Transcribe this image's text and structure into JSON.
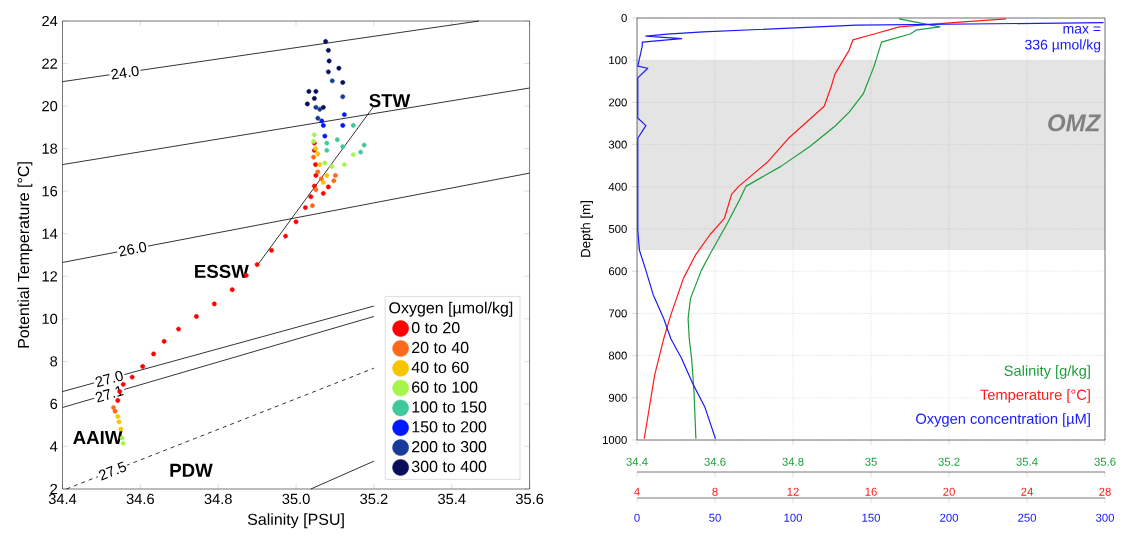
{
  "chart_data": [
    {
      "type": "scatter",
      "xlabel": "Salinity [PSU]",
      "ylabel": "Potential Temperature [°C]",
      "legend_title": "Oxygen [µmol/kg]",
      "legend": "bottom right",
      "marker": "circle",
      "xlim": [
        34.4,
        35.6
      ],
      "ylim": [
        2,
        24
      ],
      "xticks": [
        34.4,
        34.6,
        34.8,
        {
          "value": 35,
          "label": "35.0"
        },
        35.2,
        35.4,
        35.6
      ],
      "yticks": [
        2,
        4,
        6,
        8,
        10,
        12,
        14,
        16,
        18,
        20,
        22,
        24
      ],
      "series": [
        {
          "name": "0 to 20",
          "color": "#ff0000",
          "x": [
            34.542,
            34.547,
            34.556,
            34.579,
            34.606,
            34.634,
            34.661,
            34.698,
            34.744,
            34.79,
            34.836,
            34.872,
            34.9,
            34.937,
            34.973,
            35.0,
            35.024,
            35.038,
            35.047,
            35.051,
            35.05,
            35.047,
            35.047,
            35.07,
            35.083
          ],
          "values": [
            6.16,
            6.58,
            6.92,
            7.26,
            7.76,
            8.35,
            8.94,
            9.52,
            10.11,
            10.7,
            11.37,
            12.04,
            12.55,
            13.22,
            13.89,
            14.56,
            15.23,
            15.74,
            16.24,
            16.74,
            17.25,
            17.92,
            18.26,
            15.9,
            16.2
          ]
        },
        {
          "name": "20 to 40",
          "color": "#ff6a1a",
          "x": [
            34.535,
            34.531,
            35.056,
            35.065,
            35.097,
            35.101,
            35.042,
            35.051,
            35.045
          ],
          "values": [
            5.66,
            5.83,
            16.91,
            16.58,
            16.49,
            16.74,
            15.32,
            16.07,
            17.6
          ]
        },
        {
          "name": "40 to 60",
          "color": "#f7c400",
          "x": [
            34.55,
            34.545,
            34.542,
            35.056,
            35.061,
            35.07,
            35.079,
            35.05
          ],
          "values": [
            4.82,
            5.16,
            5.41,
            17.75,
            17.25,
            16.41,
            16.74,
            18.0
          ]
        },
        {
          "name": "60 to 100",
          "color": "#a6f54a",
          "x": [
            34.556,
            34.553,
            35.047,
            35.045,
            35.074,
            35.092,
            35.124,
            35.147
          ],
          "values": [
            4.15,
            4.4,
            18.65,
            18.34,
            17.33,
            17.16,
            17.25,
            17.72
          ]
        },
        {
          "name": "100 to 150",
          "color": "#40c89a",
          "x": [
            35.079,
            35.079,
            35.106,
            35.147,
            35.175,
            35.166,
            35.12
          ],
          "values": [
            18.26,
            17.92,
            18.42,
            19.09,
            18.17,
            17.84,
            18.09
          ]
        },
        {
          "name": "150 to 200",
          "color": "#0018ff",
          "x": [
            35.07,
            35.074,
            35.12,
            35.124,
            35.066
          ],
          "values": [
            19.09,
            18.59,
            19.09,
            19.6,
            19.3
          ]
        },
        {
          "name": "200 to 300",
          "color": "#1a3a9a",
          "x": [
            35.051,
            35.056,
            35.12,
            35.093,
            35.061
          ],
          "values": [
            19.94,
            19.43,
            20.44,
            21.19,
            19.85
          ]
        },
        {
          "name": "300 to 400",
          "color": "#0a0f5c",
          "x": [
            35.076,
            35.083,
            35.085,
            35.083,
            35.033,
            35.051,
            35.029,
            35.047,
            35.07,
            35.12,
            35.11
          ],
          "values": [
            23.04,
            22.62,
            22.12,
            21.61,
            20.69,
            20.69,
            20.1,
            20.36,
            19.94,
            21.11,
            21.78
          ]
        },
        {
          "type": "line",
          "marker": "none",
          "name": "24.0",
          "color": "#000000",
          "x": [
            34.4,
            35.47
          ],
          "values": [
            21.15,
            24.0
          ]
        },
        {
          "type": "line",
          "marker": "none",
          "color": "#000000",
          "x": [
            34.4,
            35.6
          ],
          "values": [
            17.25,
            20.85
          ]
        },
        {
          "type": "line",
          "marker": "none",
          "name": "26.0",
          "color": "#000000",
          "x": [
            34.4,
            35.6
          ],
          "values": [
            12.65,
            16.85
          ]
        },
        {
          "type": "line",
          "marker": "none",
          "name": "27.0",
          "color": "#000000",
          "x": [
            34.4,
            35.2
          ],
          "values": [
            6.58,
            10.6
          ]
        },
        {
          "type": "line",
          "marker": "none",
          "name": "27.1",
          "color": "#000000",
          "x": [
            34.4,
            35.2
          ],
          "values": [
            5.83,
            10.11
          ]
        },
        {
          "type": "line",
          "marker": "none",
          "name": "27.5",
          "color": "#000000",
          "line_style": "dashed",
          "x": [
            34.41,
            35.2
          ],
          "values": [
            2.0,
            7.68
          ]
        },
        {
          "type": "line",
          "marker": "none",
          "color": "#000000",
          "x": [
            35.038,
            35.2
          ],
          "values": [
            2.0,
            3.31
          ]
        },
        {
          "type": "line",
          "marker": "none",
          "color": "#000000",
          "x": [
            34.9,
            35.2
          ],
          "values": [
            12.5,
            20.0
          ]
        }
      ],
      "annotations": [
        "STW",
        "ESSW",
        "AAIW",
        "PDW"
      ]
    },
    {
      "type": "line",
      "ylabel": "Depth [m]",
      "legend": "bottom right",
      "grid": true,
      "ylim": [
        1000,
        0
      ],
      "yticks": [
        0,
        100,
        200,
        300,
        400,
        500,
        600,
        700,
        800,
        900,
        1000
      ],
      "xlim": [
        34.4,
        35.6
      ],
      "xticks": [
        34.4,
        34.6,
        34.8,
        35,
        35.2,
        35.4,
        35.6
      ],
      "x2lim": [
        4,
        28
      ],
      "x2ticks": [
        4,
        8,
        12,
        16,
        20,
        24,
        28
      ],
      "bands": [
        {
          "axis": "y",
          "from": 100,
          "to": 550,
          "label": "OMZ",
          "color": "#e4e4e4"
        }
      ],
      "series": [
        {
          "name": "Salinity [g/kg]",
          "color": "#1a9e3a",
          "x": [
            35.072,
            35.177,
            35.118,
            35.1,
            35.027,
            35.008,
            34.98,
            34.944,
            34.908,
            34.844,
            34.77,
            34.679,
            34.665,
            34.633,
            34.61,
            34.587,
            34.565,
            34.537,
            34.531,
            34.534,
            34.54,
            34.546,
            34.551
          ],
          "values": [
            2,
            21,
            28,
            38,
            57,
            114,
            180,
            223,
            256,
            304,
            351,
            399,
            427,
            484,
            522,
            560,
            598,
            665,
            712,
            760,
            807,
            883,
            997
          ]
        },
        {
          "name": "Temperature [°C]",
          "color": "#ff1a1a",
          "axis": "x2",
          "x": [
            22.93,
            20.19,
            17.45,
            16.16,
            15.07,
            14.88,
            14.15,
            13.97,
            13.6,
            12.69,
            11.77,
            10.68,
            9.21,
            8.85,
            8.48,
            7.75,
            7.02,
            6.38,
            5.74,
            5.37,
            4.91,
            4.37
          ],
          "values": [
            2,
            11,
            21,
            38,
            52,
            76,
            133,
            161,
            209,
            247,
            285,
            342,
            399,
            418,
            475,
            513,
            560,
            617,
            703,
            760,
            845,
            997
          ]
        }
      ]
    },
    {
      "type": "line",
      "legend": "bottom right",
      "ylim": [
        1000,
        0
      ],
      "xlim": [
        34.4,
        35.6
      ],
      "x2lim": [
        0,
        300
      ],
      "x2ticks": [
        0,
        50,
        100,
        150,
        200,
        250,
        300
      ],
      "series": [
        {
          "name": "Oxygen concentration [µM]",
          "color": "#1a1aff",
          "axis": "x2",
          "x": [
            299,
            140.6,
            42.3,
            19.4,
            5.7,
            28.6,
            3.4,
            3.4,
            0.5,
            6.9,
            0.5,
            0.5,
            5.7,
            0.5,
            0.5,
            1.6,
            5.7,
            10.3,
            17.1,
            21.7,
            28.6,
            35.4,
            43.4,
            50.3
          ],
          "values": [
            11,
            17,
            33,
            38,
            43,
            49,
            57,
            66,
            114,
            119,
            142,
            237,
            255,
            285,
            503,
            551,
            598,
            655,
            712,
            760,
            807,
            864,
            921,
            997
          ]
        }
      ],
      "annotations": [
        "max = 336 µmol/kg"
      ]
    }
  ]
}
